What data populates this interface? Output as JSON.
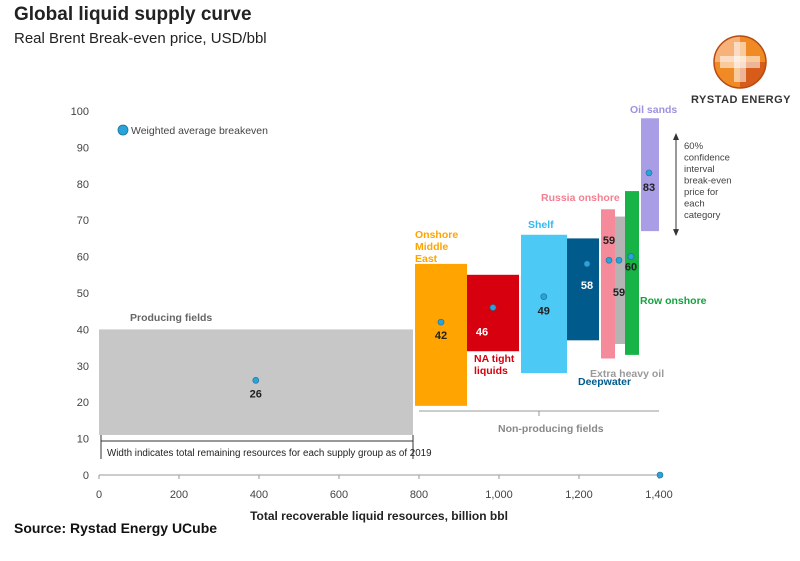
{
  "header": {
    "title": "Global liquid supply curve",
    "subtitle": "Real Brent Break-even price, USD/bbl"
  },
  "logo": {
    "text": "RYSTAD ENERGY",
    "icon": "rystad-energy-logo"
  },
  "source": "Source: Rystad Energy UCube",
  "colors": {
    "producing": "#c7c7c7",
    "onshore_me": "#ffa400",
    "na_tight": "#d6000f",
    "shelf": "#4cc9f5",
    "deepwater": "#005a8c",
    "russia": "#f58a9a",
    "extra_heavy": "#b4b4b4",
    "row_onshore": "#17b347",
    "oil_sands": "#a99ee6",
    "marker": "#2aa3d8"
  },
  "chart_data": {
    "type": "bar",
    "title": "Global liquid supply curve",
    "subtitle": "Real Brent Break-even price, USD/bbl",
    "xlabel": "Total recoverable liquid resources, billion bbl",
    "ylabel": "",
    "xlim": [
      0,
      1400
    ],
    "ylim": [
      0,
      100
    ],
    "xticks": [
      0,
      200,
      400,
      600,
      800,
      1000,
      1200,
      1400
    ],
    "xtick_labels": [
      "0",
      "200",
      "400",
      "600",
      "800",
      "1,000",
      "1,200",
      "1,400"
    ],
    "yticks": [
      0,
      10,
      20,
      30,
      40,
      50,
      60,
      70,
      80,
      90,
      100
    ],
    "grid": false,
    "legend": {
      "label": "Weighted average breakeven",
      "placement": "top-left"
    },
    "series": [
      {
        "name": "Producing fields",
        "label": "Producing fields",
        "x0": 0,
        "x1": 785,
        "low": 11,
        "high": 40,
        "avg": 26,
        "color_key": "producing"
      },
      {
        "name": "Onshore Middle East",
        "label": "Onshore Middle East",
        "x0": 790,
        "x1": 920,
        "low": 19,
        "high": 58,
        "avg": 42,
        "color_key": "onshore_me"
      },
      {
        "name": "NA tight liquids",
        "label": "NA tight liquids",
        "x0": 920,
        "x1": 1050,
        "low": 34,
        "high": 55,
        "avg": 46,
        "color_key": "na_tight"
      },
      {
        "name": "Shelf",
        "label": "Shelf",
        "x0": 1055,
        "x1": 1170,
        "low": 28,
        "high": 66,
        "avg": 49,
        "color_key": "shelf"
      },
      {
        "name": "Deepwater",
        "label": "Deepwater",
        "x0": 1170,
        "x1": 1250,
        "low": 37,
        "high": 65,
        "avg": 58,
        "color_key": "deepwater"
      },
      {
        "name": "Russia onshore",
        "label": "Russia onshore",
        "x0": 1255,
        "x1": 1290,
        "low": 32,
        "high": 73,
        "avg": 59,
        "color_key": "russia"
      },
      {
        "name": "Extra heavy oil",
        "label": "Extra heavy oil",
        "x0": 1290,
        "x1": 1315,
        "low": 36,
        "high": 71,
        "avg": 59,
        "color_key": "extra_heavy"
      },
      {
        "name": "Row onshore",
        "label": "Row onshore",
        "x0": 1315,
        "x1": 1350,
        "low": 33,
        "high": 78,
        "avg": 60,
        "color_key": "row_onshore"
      },
      {
        "name": "Oil sands",
        "label": "Oil sands",
        "x0": 1355,
        "x1": 1400,
        "low": 67,
        "high": 98,
        "avg": 83,
        "color_key": "oil_sands"
      }
    ],
    "annotations": {
      "confidence": "60% confidence interval break-even price for each category",
      "width_note": "Width indicates total remaining resources for each supply group as of 2019",
      "non_producing": "Non-producing fields",
      "confidence_range": [
        67,
        100
      ]
    }
  }
}
